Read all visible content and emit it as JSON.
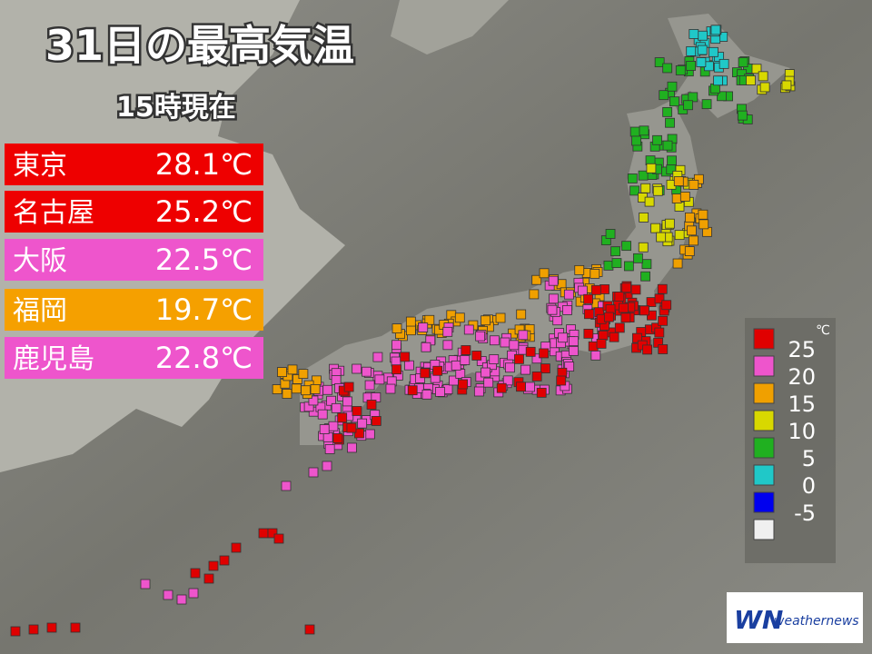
{
  "header": {
    "title": "31日の最高気温",
    "subtitle": "15時現在"
  },
  "cities": [
    {
      "name": "東京",
      "temp": "28.1℃",
      "color": "#ee0000"
    },
    {
      "name": "名古屋",
      "temp": "25.2℃",
      "color": "#ee0000"
    },
    {
      "name": "大阪",
      "temp": "22.5℃",
      "color": "#ee55cc"
    },
    {
      "name": "福岡",
      "temp": "19.7℃",
      "color": "#f5a000"
    },
    {
      "name": "鹿児島",
      "temp": "22.8℃",
      "color": "#ee55cc"
    }
  ],
  "legend": {
    "unit": "℃",
    "colors": [
      "#e00000",
      "#ee55cc",
      "#f0a000",
      "#d8d800",
      "#20b020",
      "#20c8c8",
      "#0000ee",
      "#f0f0f0"
    ],
    "labels": [
      25,
      20,
      15,
      10,
      5,
      0,
      -5
    ]
  },
  "logo": {
    "mark": "WN",
    "text": "weathernews"
  }
}
